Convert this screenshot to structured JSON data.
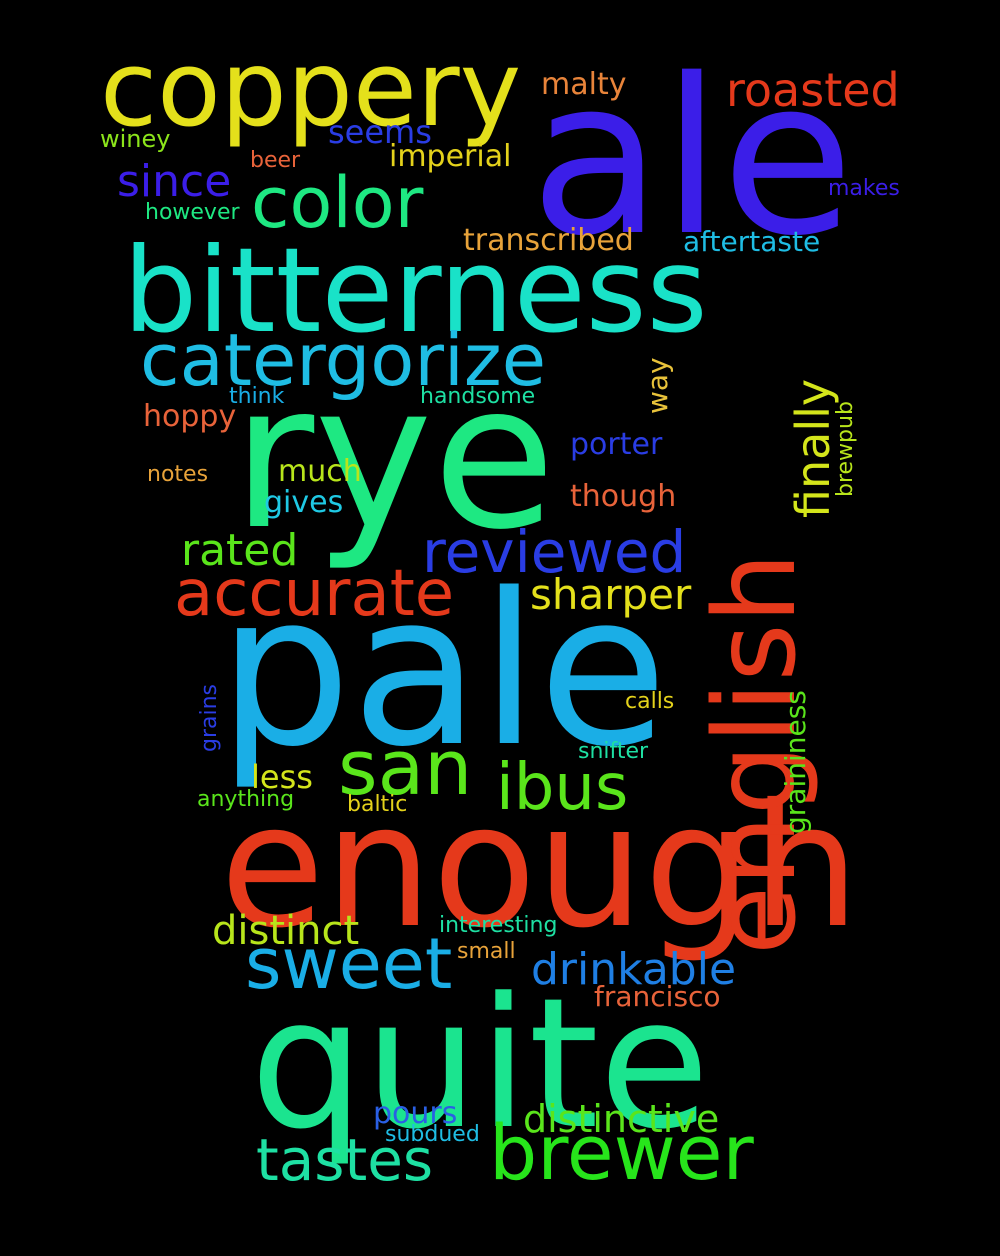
{
  "words": {
    "ale": {
      "text": "ale",
      "color": "#3b1ee8"
    },
    "rye": {
      "text": "rye",
      "color": "#1ee882"
    },
    "pale": {
      "text": "pale",
      "color": "#1aaee6"
    },
    "enough": {
      "text": "enough",
      "color": "#e5391b"
    },
    "quite": {
      "text": "quite",
      "color": "#1be48f"
    },
    "bitterness": {
      "text": "bitterness",
      "color": "#19e2c8"
    },
    "coppery": {
      "text": "coppery",
      "color": "#e4e01b"
    },
    "english": {
      "text": "english",
      "color": "#e5391b"
    },
    "catergorize": {
      "text": "catergorize",
      "color": "#1fbde4"
    },
    "color": {
      "text": "color",
      "color": "#1ee882"
    },
    "brewer": {
      "text": "brewer",
      "color": "#27e51b"
    },
    "sweet": {
      "text": "sweet",
      "color": "#1aaee6"
    },
    "tastes": {
      "text": "tastes",
      "color": "#1ee0a3"
    },
    "accurate": {
      "text": "accurate",
      "color": "#e5391b"
    },
    "reviewed": {
      "text": "reviewed",
      "color": "#2a3de4"
    },
    "san": {
      "text": "san",
      "color": "#5ae51b"
    },
    "ibus": {
      "text": "ibus",
      "color": "#5ae51b"
    },
    "roasted": {
      "text": "roasted",
      "color": "#e5391b"
    },
    "since": {
      "text": "since",
      "color": "#3b1ee8"
    },
    "drinkable": {
      "text": "drinkable",
      "color": "#1f7fe4"
    },
    "distinctive": {
      "text": "distinctive",
      "color": "#5ae51b"
    },
    "rated": {
      "text": "rated",
      "color": "#5ae51b"
    },
    "sharper": {
      "text": "sharper",
      "color": "#e4e01b"
    },
    "distinct": {
      "text": "distinct",
      "color": "#b8e51b"
    },
    "finally": {
      "text": "finally",
      "color": "#d4e51b"
    },
    "malty": {
      "text": "malty",
      "color": "#e8843a"
    },
    "seems": {
      "text": "seems",
      "color": "#2a3de4"
    },
    "imperial": {
      "text": "imperial",
      "color": "#e4d21b"
    },
    "transcribed": {
      "text": "transcribed",
      "color": "#e8a33a"
    },
    "aftertaste": {
      "text": "aftertaste",
      "color": "#1fbde4"
    },
    "hoppy": {
      "text": "hoppy",
      "color": "#e8633a"
    },
    "porter": {
      "text": "porter",
      "color": "#2a3de4"
    },
    "much": {
      "text": "much",
      "color": "#b8e51b"
    },
    "though": {
      "text": "though",
      "color": "#e8633a"
    },
    "gives": {
      "text": "gives",
      "color": "#1fc9e4"
    },
    "less": {
      "text": "less",
      "color": "#d4e51b"
    },
    "pours": {
      "text": "pours",
      "color": "#2a5fe4"
    },
    "francisco": {
      "text": "francisco",
      "color": "#e8633a"
    },
    "way": {
      "text": "way",
      "color": "#e8c23a"
    },
    "winey": {
      "text": "winey",
      "color": "#8ce51b"
    },
    "beer": {
      "text": "beer",
      "color": "#e8633a"
    },
    "however": {
      "text": "however",
      "color": "#1ee882"
    },
    "makes": {
      "text": "makes",
      "color": "#3b1ee8"
    },
    "think": {
      "text": "think",
      "color": "#1aaee6"
    },
    "handsome": {
      "text": "handsome",
      "color": "#1ee0a3"
    },
    "notes": {
      "text": "notes",
      "color": "#e8a33a"
    },
    "brewpub": {
      "text": "brewpub",
      "color": "#b8e51b"
    },
    "graininess": {
      "text": "graininess",
      "color": "#5ae51b"
    },
    "grains": {
      "text": "grains",
      "color": "#2a3de4"
    },
    "calls": {
      "text": "calls",
      "color": "#e4d21b"
    },
    "snifter": {
      "text": "snifter",
      "color": "#1ee0a3"
    },
    "anything": {
      "text": "anything",
      "color": "#5ae51b"
    },
    "baltic": {
      "text": "baltic",
      "color": "#e4d21b"
    },
    "interesting": {
      "text": "interesting",
      "color": "#1ee0a3"
    },
    "small": {
      "text": "small",
      "color": "#e8a33a"
    },
    "subdued": {
      "text": "subdued",
      "color": "#1fbde4"
    }
  }
}
